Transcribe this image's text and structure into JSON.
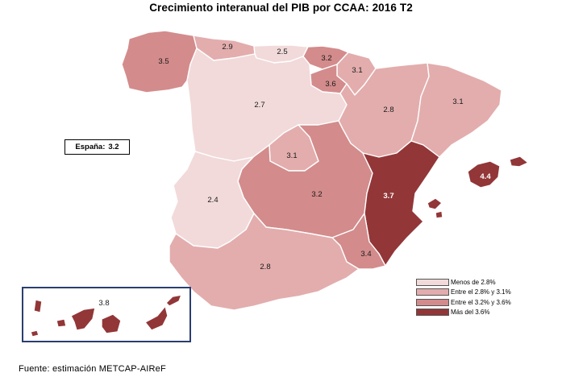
{
  "title": "Crecimiento interanual del PIB por CCAA: 2016 T2",
  "national": {
    "label": "España:",
    "value": "3.2"
  },
  "source": "Fuente: estimación METCAP-AIReF",
  "legend": [
    {
      "label": "Menos de 2.8%",
      "color": "#f2dada"
    },
    {
      "label": "Entre el 2.8% y 3.1%",
      "color": "#e3adad"
    },
    {
      "label": "Entre el 3.2% y 3.6%",
      "color": "#d48b8b"
    },
    {
      "label": "Más del 3.6%",
      "color": "#923638"
    }
  ],
  "regions": [
    {
      "name": "galicia",
      "value": "3.5"
    },
    {
      "name": "asturias",
      "value": "2.9"
    },
    {
      "name": "cantabria",
      "value": "2.5"
    },
    {
      "name": "pais-vasco",
      "value": "3.2"
    },
    {
      "name": "navarra",
      "value": "3.1"
    },
    {
      "name": "la-rioja",
      "value": "3.6"
    },
    {
      "name": "castilla-y-leon",
      "value": "2.7"
    },
    {
      "name": "aragon",
      "value": "2.8"
    },
    {
      "name": "cataluna",
      "value": "3.1"
    },
    {
      "name": "madrid",
      "value": "3.1"
    },
    {
      "name": "castilla-la-mancha",
      "value": "3.2"
    },
    {
      "name": "extremadura",
      "value": "2.4"
    },
    {
      "name": "comunitat-valenciana",
      "value": "3.7"
    },
    {
      "name": "baleares",
      "value": "4.4"
    },
    {
      "name": "murcia",
      "value": "3.4"
    },
    {
      "name": "andalucia",
      "value": "2.8"
    },
    {
      "name": "canarias",
      "value": "3.8"
    }
  ]
}
